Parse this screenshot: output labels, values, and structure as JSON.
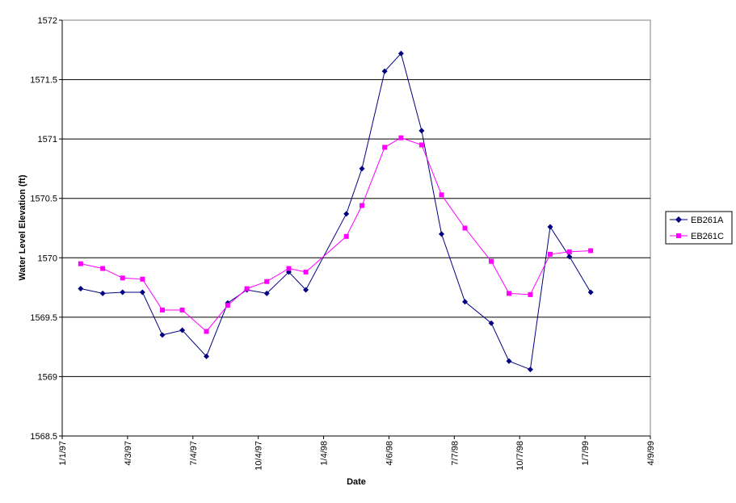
{
  "chart_data": {
    "type": "line",
    "xlabel": "Date",
    "ylabel": "Water Level Elevation (ft)",
    "x_ticks": [
      "1/1/97",
      "4/3/97",
      "7/4/97",
      "10/4/97",
      "1/4/98",
      "4/6/98",
      "7/7/98",
      "10/7/98",
      "1/7/99",
      "4/9/99"
    ],
    "y_ticks": [
      1568.5,
      1569,
      1569.5,
      1570,
      1570.5,
      1571,
      1571.5,
      1572
    ],
    "xlim": [
      "1997-01-01",
      "1999-04-09"
    ],
    "ylim": [
      1568.5,
      1572
    ],
    "grid": "horizontal",
    "legend_position": "right",
    "series": [
      {
        "name": "EB261A",
        "color": "#000080",
        "marker": "diamond",
        "points": [
          {
            "x": "1997-01-27",
            "y": 1569.74
          },
          {
            "x": "1997-02-27",
            "y": 1569.7
          },
          {
            "x": "1997-03-27",
            "y": 1569.71
          },
          {
            "x": "1997-04-24",
            "y": 1569.71
          },
          {
            "x": "1997-05-22",
            "y": 1569.35
          },
          {
            "x": "1997-06-19",
            "y": 1569.39
          },
          {
            "x": "1997-07-23",
            "y": 1569.17
          },
          {
            "x": "1997-08-22",
            "y": 1569.62
          },
          {
            "x": "1997-09-18",
            "y": 1569.73
          },
          {
            "x": "1997-10-16",
            "y": 1569.7
          },
          {
            "x": "1997-11-16",
            "y": 1569.88
          },
          {
            "x": "1997-12-10",
            "y": 1569.73
          },
          {
            "x": "1998-02-05",
            "y": 1570.37
          },
          {
            "x": "1998-02-27",
            "y": 1570.75
          },
          {
            "x": "1998-03-31",
            "y": 1571.57
          },
          {
            "x": "1998-04-23",
            "y": 1571.72
          },
          {
            "x": "1998-05-22",
            "y": 1571.07
          },
          {
            "x": "1998-06-19",
            "y": 1570.2
          },
          {
            "x": "1998-07-22",
            "y": 1569.63
          },
          {
            "x": "1998-08-28",
            "y": 1569.45
          },
          {
            "x": "1998-09-22",
            "y": 1569.13
          },
          {
            "x": "1998-10-22",
            "y": 1569.06
          },
          {
            "x": "1998-11-19",
            "y": 1570.26
          },
          {
            "x": "1998-12-16",
            "y": 1570.01
          },
          {
            "x": "1999-01-15",
            "y": 1569.71
          }
        ]
      },
      {
        "name": "EB261C",
        "color": "#FF00FF",
        "marker": "square",
        "points": [
          {
            "x": "1997-01-27",
            "y": 1569.95
          },
          {
            "x": "1997-02-27",
            "y": 1569.91
          },
          {
            "x": "1997-03-27",
            "y": 1569.83
          },
          {
            "x": "1997-04-24",
            "y": 1569.82
          },
          {
            "x": "1997-05-22",
            "y": 1569.56
          },
          {
            "x": "1997-06-19",
            "y": 1569.56
          },
          {
            "x": "1997-07-23",
            "y": 1569.38
          },
          {
            "x": "1997-08-22",
            "y": 1569.6
          },
          {
            "x": "1997-09-18",
            "y": 1569.74
          },
          {
            "x": "1997-10-16",
            "y": 1569.8
          },
          {
            "x": "1997-11-16",
            "y": 1569.91
          },
          {
            "x": "1997-12-10",
            "y": 1569.88
          },
          {
            "x": "1998-02-05",
            "y": 1570.18
          },
          {
            "x": "1998-02-27",
            "y": 1570.44
          },
          {
            "x": "1998-03-31",
            "y": 1570.93
          },
          {
            "x": "1998-04-23",
            "y": 1571.01
          },
          {
            "x": "1998-05-22",
            "y": 1570.95
          },
          {
            "x": "1998-06-19",
            "y": 1570.53
          },
          {
            "x": "1998-07-22",
            "y": 1570.25
          },
          {
            "x": "1998-08-28",
            "y": 1569.97
          },
          {
            "x": "1998-09-22",
            "y": 1569.7
          },
          {
            "x": "1998-10-22",
            "y": 1569.69
          },
          {
            "x": "1998-11-19",
            "y": 1570.03
          },
          {
            "x": "1998-12-16",
            "y": 1570.05
          },
          {
            "x": "1999-01-15",
            "y": 1570.06
          }
        ]
      }
    ]
  }
}
